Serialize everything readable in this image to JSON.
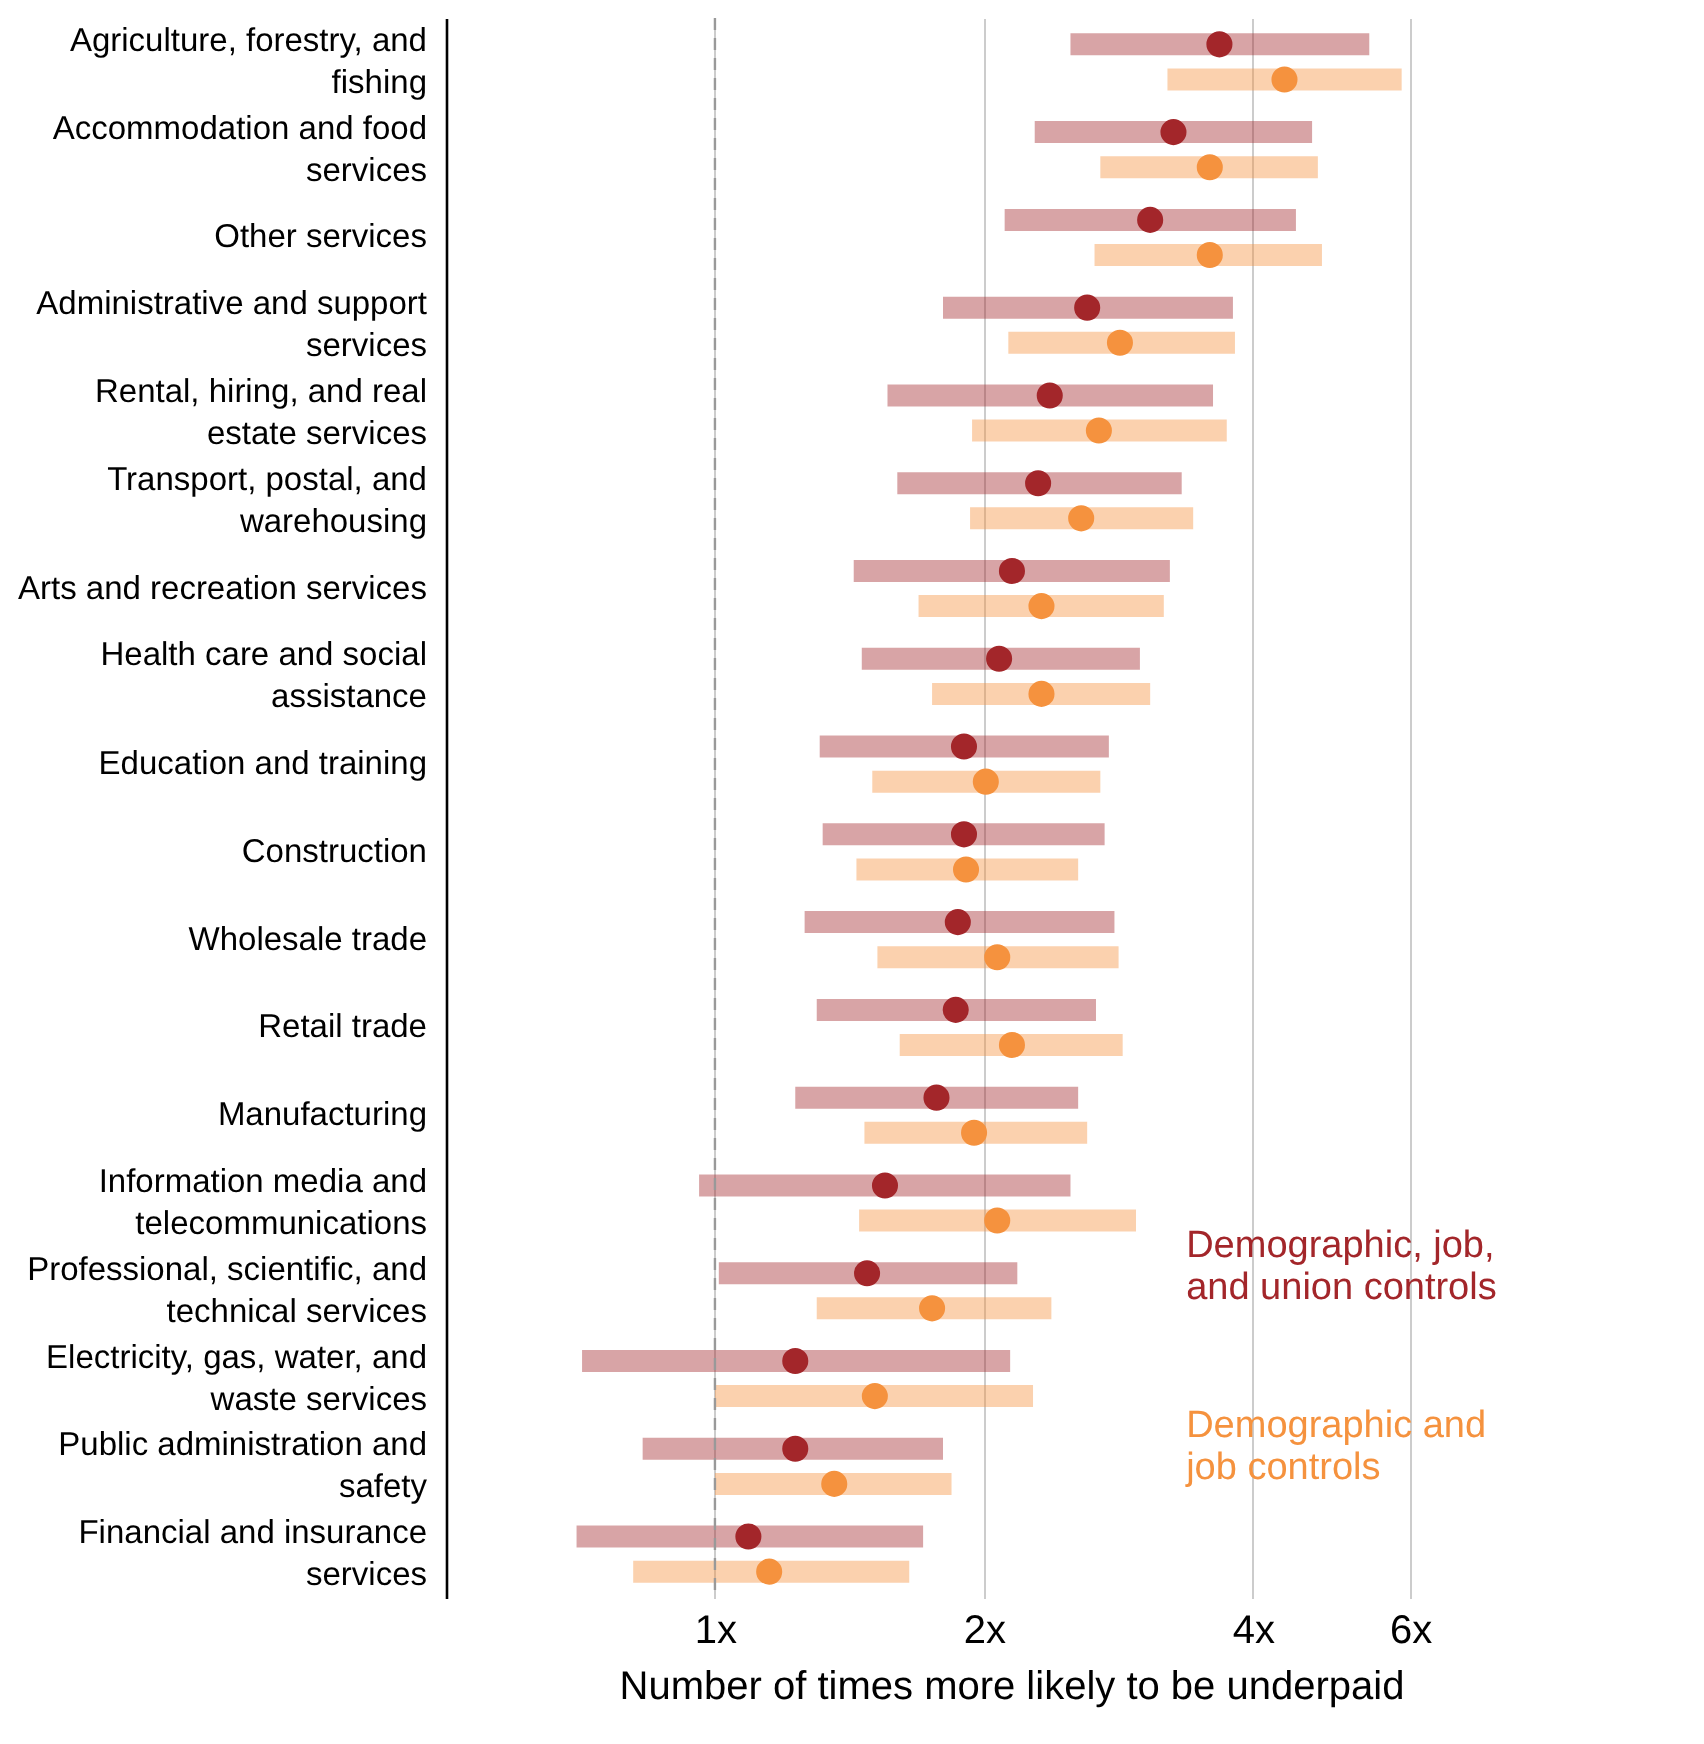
{
  "chart_data": {
    "type": "scatter",
    "orientation": "horizontal",
    "xlabel": "Number of times more likely to be underpaid",
    "categories": [
      "Agriculture, forestry, and fishing",
      "Accommodation and food services",
      "Other services",
      "Administrative and support services",
      "Rental, hiring, and real estate services",
      "Transport, postal, and warehousing",
      "Arts and recreation services",
      "Health care and social assistance",
      "Education and training",
      "Construction",
      "Wholesale trade",
      "Retail trade",
      "Manufacturing",
      "Information media and telecommunications",
      "Professional, scientific, and technical services",
      "Electricity, gas, water, and waste services",
      "Public administration and safety",
      "Financial and insurance services"
    ],
    "series": [
      {
        "name": "Demographic, job, and union controls",
        "color": "#a3262a",
        "values": [
          3.67,
          3.26,
          3.07,
          2.61,
          2.37,
          2.3,
          2.15,
          2.08,
          1.9,
          1.9,
          1.87,
          1.86,
          1.77,
          1.55,
          1.48,
          1.23,
          1.23,
          1.09
        ],
        "errors": [
          [
            2.5,
            5.4
          ],
          [
            2.28,
            4.66
          ],
          [
            2.11,
            4.47
          ],
          [
            1.8,
            3.8
          ],
          [
            1.56,
            3.61
          ],
          [
            1.6,
            3.33
          ],
          [
            1.43,
            3.23
          ],
          [
            1.46,
            2.99
          ],
          [
            1.31,
            2.76
          ],
          [
            1.32,
            2.73
          ],
          [
            1.26,
            2.8
          ],
          [
            1.3,
            2.67
          ],
          [
            1.23,
            2.55
          ],
          [
            0.96,
            2.5
          ],
          [
            1.01,
            2.18
          ],
          [
            0.71,
            2.14
          ],
          [
            0.83,
            1.8
          ],
          [
            0.7,
            1.71
          ]
        ]
      },
      {
        "name": "Demographic and job controls",
        "color": "#f5923e",
        "values": [
          4.34,
          3.58,
          3.58,
          2.84,
          2.69,
          2.57,
          2.32,
          2.32,
          2.01,
          1.91,
          2.07,
          2.15,
          1.95,
          2.07,
          1.75,
          1.51,
          1.36,
          1.15
        ],
        "errors": [
          [
            3.21,
            5.87
          ],
          [
            2.7,
            4.73
          ],
          [
            2.66,
            4.78
          ],
          [
            2.13,
            3.82
          ],
          [
            1.94,
            3.74
          ],
          [
            1.93,
            3.43
          ],
          [
            1.69,
            3.18
          ],
          [
            1.75,
            3.07
          ],
          [
            1.5,
            2.7
          ],
          [
            1.44,
            2.55
          ],
          [
            1.52,
            2.83
          ],
          [
            1.61,
            2.86
          ],
          [
            1.47,
            2.61
          ],
          [
            1.45,
            2.96
          ],
          [
            1.3,
            2.38
          ],
          [
            1.0,
            2.27
          ],
          [
            1.0,
            1.84
          ],
          [
            0.81,
            1.65
          ]
        ]
      }
    ],
    "xlim": [
      0.5,
      9.2
    ],
    "log": "x",
    "xticks": [
      {
        "value": 1,
        "label": "1x"
      },
      {
        "value": 2,
        "label": "2x"
      },
      {
        "value": 4,
        "label": "4x"
      },
      {
        "value": 6,
        "label": "6x"
      }
    ],
    "grid": "x",
    "legend": "bottom right",
    "marker": "circle",
    "ref_lines": [
      {
        "axis": "x",
        "value": 1,
        "color": "#999999",
        "line_style": "dashed"
      }
    ]
  }
}
